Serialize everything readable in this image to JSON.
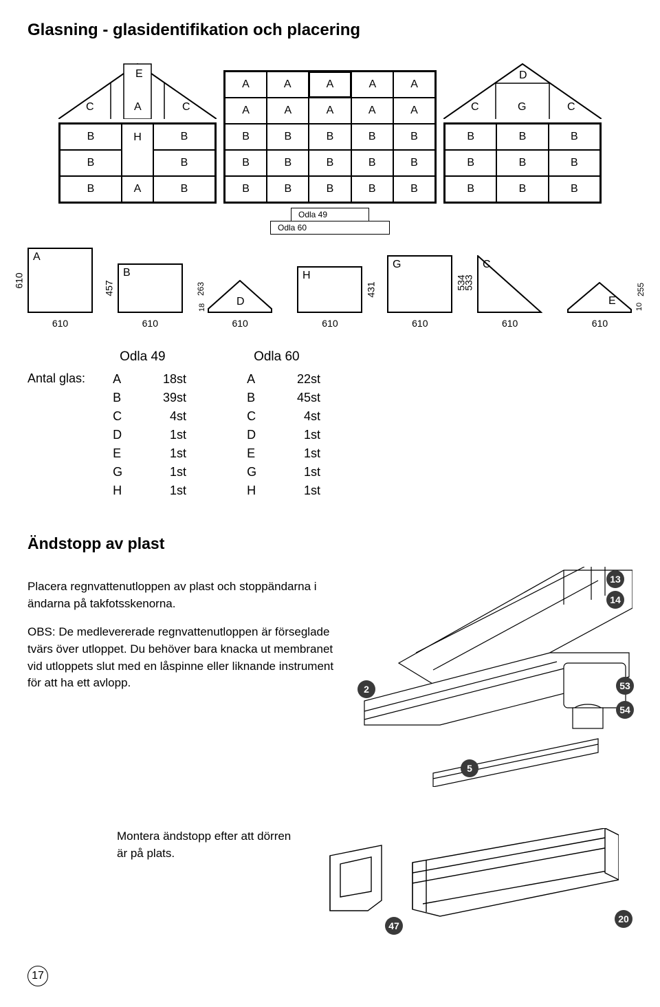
{
  "title": "Glasning - glasidentifikation och placering",
  "diagrams": {
    "gable_left": {
      "roof_labels": [
        "C",
        "A",
        "C"
      ],
      "peak_label": "E",
      "rows": [
        [
          "B",
          "H",
          "B"
        ],
        [
          "B",
          "",
          "B"
        ],
        [
          "B",
          "A",
          "B"
        ]
      ]
    },
    "side": {
      "rows": [
        [
          "A",
          "A",
          "A",
          "A",
          "A"
        ],
        [
          "A",
          "A",
          "A",
          "A",
          "A"
        ],
        [
          "B",
          "B",
          "B",
          "B",
          "B"
        ],
        [
          "B",
          "B",
          "B",
          "B",
          "B"
        ],
        [
          "B",
          "B",
          "B",
          "B",
          "B"
        ]
      ]
    },
    "gable_right": {
      "roof_labels": [
        "C",
        "G",
        "C"
      ],
      "peak_label": "D",
      "rows": [
        [
          "B",
          "B",
          "B"
        ],
        [
          "B",
          "B",
          "B"
        ],
        [
          "B",
          "B",
          "B"
        ]
      ]
    },
    "model_labels": {
      "a": "Odla 49",
      "b": "Odla 60"
    }
  },
  "shapes": {
    "A": {
      "w": "610",
      "h": "610"
    },
    "B": {
      "w": "610",
      "h": "457"
    },
    "D": {
      "w": "610",
      "h": "263",
      "h2": "18"
    },
    "H": {
      "w": "610",
      "h": "431"
    },
    "G": {
      "w": "610",
      "h": "534"
    },
    "C": {
      "w": "610",
      "h": "533"
    },
    "E": {
      "w": "610",
      "h": "255",
      "h2": "10"
    }
  },
  "antal_label": "Antal glas:",
  "tables": {
    "left": {
      "title": "Odla 49",
      "rows": [
        [
          "A",
          "18st"
        ],
        [
          "B",
          "39st"
        ],
        [
          "C",
          "4st"
        ],
        [
          "D",
          "1st"
        ],
        [
          "E",
          "1st"
        ],
        [
          "G",
          "1st"
        ],
        [
          "H",
          "1st"
        ]
      ]
    },
    "right": {
      "title": "Odla 60",
      "rows": [
        [
          "A",
          "22st"
        ],
        [
          "B",
          "45st"
        ],
        [
          "C",
          "4st"
        ],
        [
          "D",
          "1st"
        ],
        [
          "E",
          "1st"
        ],
        [
          "G",
          "1st"
        ],
        [
          "H",
          "1st"
        ]
      ]
    }
  },
  "section2_title": "Ändstopp av plast",
  "para1": "Placera regnvattenutloppen av plast och stopp­ändarna i ändarna på takfotsskenorna.",
  "para2": "OBS: De medlevererade regnvattenutloppen är förseglade tvärs över utloppet. Du behöver bara knacka ut membranet vid utloppets slut med en låspinne eller liknande instrument för att ha ett avlopp.",
  "callouts": {
    "c13": "13",
    "c14": "14",
    "c2": "2",
    "c53": "53",
    "c54": "54",
    "c5": "5",
    "c47": "47",
    "c20": "20"
  },
  "caption2": "Montera ändstopp efter att dörren är på plats.",
  "page_num": "17"
}
